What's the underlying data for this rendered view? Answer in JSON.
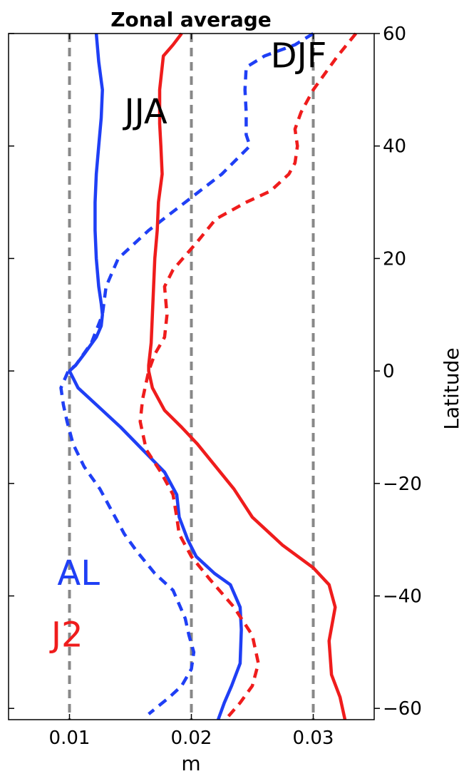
{
  "chart_data": {
    "type": "line",
    "title": "Zonal average",
    "xlabel": "m",
    "ylabel": "Latitude",
    "xlim": [
      0.005,
      0.035
    ],
    "ylim": [
      -62,
      60
    ],
    "xticks": [
      0.01,
      0.02,
      0.03
    ],
    "xtick_labels": [
      "0.01",
      "0.02",
      "0.03"
    ],
    "yticks": [
      60,
      40,
      20,
      0,
      -20,
      -40,
      -60
    ],
    "ytick_labels": [
      "60",
      "40",
      "20",
      "0",
      "−20",
      "−40",
      "−60"
    ],
    "y_axis_position": "right",
    "vlines": [
      0.01,
      0.02,
      0.03
    ],
    "vline_color": "#888888",
    "annotations": [
      {
        "text": "JJA",
        "x": 0.0145,
        "y": 44,
        "color": "#000000"
      },
      {
        "text": "DJF",
        "x": 0.0265,
        "y": 54,
        "color": "#000000"
      },
      {
        "text": "AL",
        "x": 0.009,
        "y": -38,
        "color": "#1f3ff5"
      },
      {
        "text": "J2",
        "x": 0.0085,
        "y": -49,
        "color": "#ef1c1c"
      }
    ],
    "series": [
      {
        "name": "AL",
        "season": "JJA",
        "color": "#1f3ff5",
        "style": "solid",
        "x": [
          0.0122,
          0.0124,
          0.0127,
          0.0126,
          0.0124,
          0.0122,
          0.0121,
          0.0121,
          0.0122,
          0.0124,
          0.0126,
          0.0127,
          0.0126,
          0.0122,
          0.0112,
          0.0105,
          0.01,
          0.0107,
          0.0122,
          0.0142,
          0.016,
          0.0178,
          0.0188,
          0.019,
          0.0197,
          0.0204,
          0.0219,
          0.0232,
          0.024,
          0.0241,
          0.024,
          0.0233,
          0.0227,
          0.0222
        ],
        "y": [
          60,
          55,
          50,
          45,
          40,
          35,
          30,
          25,
          20,
          15,
          12,
          10,
          8,
          6,
          3,
          1,
          0,
          -3,
          -6,
          -10,
          -14,
          -18,
          -22,
          -26,
          -30,
          -33,
          -36,
          -38,
          -42,
          -46,
          -52,
          -56,
          -59,
          -62
        ]
      },
      {
        "name": "AL",
        "season": "DJF",
        "color": "#1f3ff5",
        "style": "dashed",
        "x": [
          0.03,
          0.0285,
          0.026,
          0.0245,
          0.0244,
          0.0245,
          0.0245,
          0.0248,
          0.0225,
          0.0195,
          0.0165,
          0.014,
          0.013,
          0.0127,
          0.0118,
          0.0105,
          0.0099,
          0.0093,
          0.0095,
          0.0098,
          0.0103,
          0.0112,
          0.0125,
          0.0135,
          0.0145,
          0.0155,
          0.017,
          0.0185,
          0.0195,
          0.0198,
          0.0202,
          0.02,
          0.0192,
          0.0182,
          0.0165
        ],
        "y": [
          60,
          58,
          56,
          54,
          50,
          46,
          42,
          40,
          35,
          30,
          25,
          20,
          15,
          10,
          5,
          1,
          0,
          -3,
          -6,
          -9,
          -13,
          -17,
          -21,
          -25,
          -29,
          -32,
          -36,
          -39,
          -44,
          -47,
          -50,
          -53,
          -56,
          -58,
          -61
        ]
      },
      {
        "name": "J2",
        "season": "JJA",
        "color": "#ef1c1c",
        "style": "solid",
        "x": [
          0.0192,
          0.0185,
          0.0177,
          0.0174,
          0.0174,
          0.0175,
          0.0176,
          0.0173,
          0.0172,
          0.017,
          0.0169,
          0.0168,
          0.0167,
          0.0165,
          0.0165,
          0.0168,
          0.0178,
          0.0192,
          0.0205,
          0.022,
          0.0235,
          0.025,
          0.0275,
          0.03,
          0.0313,
          0.0318,
          0.0313,
          0.0315,
          0.0322,
          0.0326
        ],
        "y": [
          60,
          58,
          56,
          50,
          44,
          40,
          35,
          30,
          25,
          20,
          15,
          10,
          5,
          1,
          0,
          -3,
          -7,
          -10,
          -13,
          -17,
          -21,
          -26,
          -31,
          -35,
          -38,
          -42,
          -48,
          -54,
          -58,
          -62
        ]
      },
      {
        "name": "J2",
        "season": "DJF",
        "color": "#ef1c1c",
        "style": "dashed",
        "x": [
          0.0335,
          0.032,
          0.03,
          0.029,
          0.0285,
          0.0287,
          0.0285,
          0.028,
          0.0265,
          0.0245,
          0.022,
          0.0205,
          0.0185,
          0.0178,
          0.018,
          0.0178,
          0.017,
          0.0165,
          0.016,
          0.0158,
          0.0163,
          0.0175,
          0.0185,
          0.0188,
          0.019,
          0.02,
          0.0215,
          0.0235,
          0.025,
          0.0255,
          0.025,
          0.024,
          0.0228
        ],
        "y": [
          60,
          56,
          50,
          46,
          43,
          40,
          37,
          35,
          32,
          30,
          27,
          23,
          18,
          15,
          10,
          6,
          3,
          0,
          -5,
          -9,
          -14,
          -18,
          -22,
          -26,
          -29,
          -33,
          -37,
          -42,
          -47,
          -52,
          -56,
          -59,
          -62
        ]
      }
    ]
  }
}
